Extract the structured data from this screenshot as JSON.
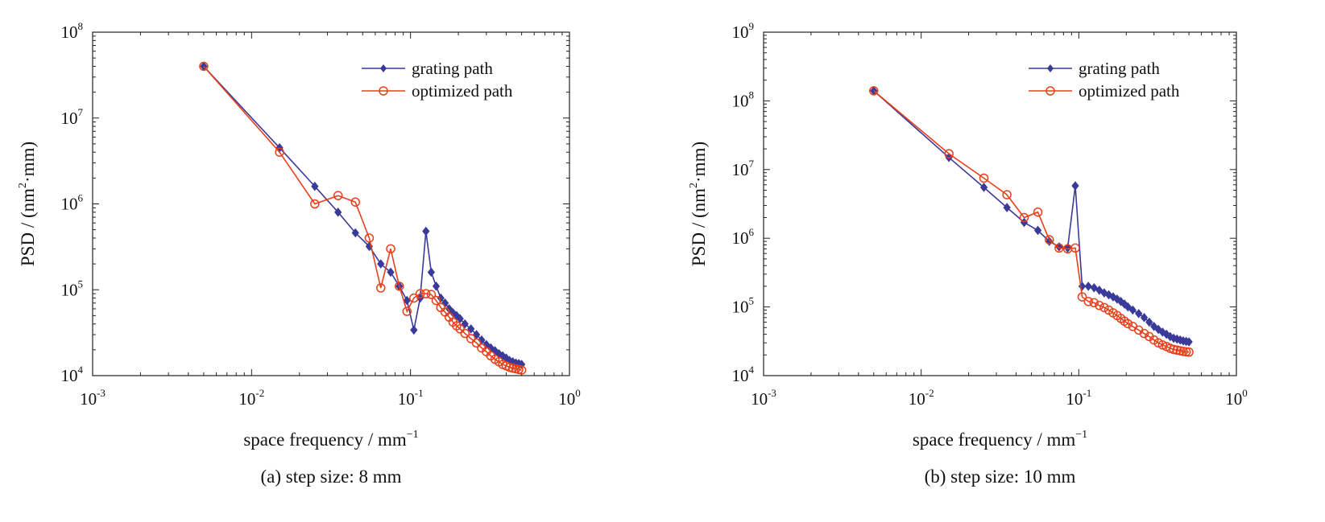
{
  "chart_data": [
    {
      "type": "line",
      "caption": "(a) step size: 8 mm",
      "xlabel": "space frequency / mm",
      "xlabel_sup": "−1",
      "ylabel": "PSD / (nm",
      "ylabel_sup": "2",
      "ylabel_tail": "·mm)",
      "x_scale": "log",
      "y_scale": "log",
      "xlim": [
        0.001,
        1
      ],
      "ylim": [
        10000,
        100000000
      ],
      "x_ticks": [
        {
          "base": "10",
          "exp": "-3"
        },
        {
          "base": "10",
          "exp": "-2"
        },
        {
          "base": "10",
          "exp": "-1"
        },
        {
          "base": "10",
          "exp": "0"
        }
      ],
      "y_ticks": [
        {
          "base": "10",
          "exp": "4"
        },
        {
          "base": "10",
          "exp": "5"
        },
        {
          "base": "10",
          "exp": "6"
        },
        {
          "base": "10",
          "exp": "7"
        },
        {
          "base": "10",
          "exp": "8"
        }
      ],
      "grid": false,
      "legend_position": "top-right",
      "series": [
        {
          "name": "grating path",
          "color": "#3a3a9a",
          "marker": "diamond",
          "x": [
            0.005,
            0.015,
            0.025,
            0.035,
            0.045,
            0.055,
            0.065,
            0.075,
            0.085,
            0.095,
            0.105,
            0.115,
            0.125,
            0.135,
            0.145,
            0.155,
            0.165,
            0.175,
            0.185,
            0.195,
            0.205,
            0.22,
            0.24,
            0.26,
            0.28,
            0.3,
            0.32,
            0.34,
            0.36,
            0.38,
            0.4,
            0.42,
            0.44,
            0.46,
            0.48,
            0.5
          ],
          "y": [
            40000000,
            4500000,
            1600000,
            800000,
            460000,
            320000,
            200000,
            160000,
            110000,
            75000,
            34000,
            80000,
            480000,
            160000,
            110000,
            80000,
            70000,
            60000,
            54000,
            50000,
            46000,
            40000,
            35000,
            30000,
            26000,
            23000,
            21000,
            19500,
            18000,
            17000,
            16000,
            15000,
            14500,
            14000,
            13800,
            13500
          ]
        },
        {
          "name": "optimized path",
          "color": "#e8401c",
          "marker": "circle",
          "x": [
            0.005,
            0.015,
            0.025,
            0.035,
            0.045,
            0.055,
            0.065,
            0.075,
            0.085,
            0.095,
            0.105,
            0.115,
            0.125,
            0.135,
            0.145,
            0.155,
            0.165,
            0.175,
            0.185,
            0.195,
            0.205,
            0.22,
            0.24,
            0.26,
            0.28,
            0.3,
            0.32,
            0.34,
            0.36,
            0.38,
            0.4,
            0.42,
            0.44,
            0.46,
            0.48,
            0.5
          ],
          "y": [
            40000000,
            4000000,
            1000000,
            1250000,
            1050000,
            400000,
            105000,
            300000,
            110000,
            56000,
            80000,
            90000,
            90000,
            88000,
            75000,
            62000,
            55000,
            48000,
            42000,
            38000,
            35000,
            31000,
            27000,
            24000,
            21000,
            19000,
            17000,
            15500,
            14500,
            13500,
            13000,
            12500,
            12200,
            12000,
            11800,
            11600
          ]
        }
      ]
    },
    {
      "type": "line",
      "caption": "(b) step size: 10 mm",
      "xlabel": "space frequency / mm",
      "xlabel_sup": "−1",
      "ylabel": "PSD / (nm",
      "ylabel_sup": "2",
      "ylabel_tail": "·mm)",
      "x_scale": "log",
      "y_scale": "log",
      "xlim": [
        0.001,
        1
      ],
      "ylim": [
        10000,
        1000000000
      ],
      "x_ticks": [
        {
          "base": "10",
          "exp": "-3"
        },
        {
          "base": "10",
          "exp": "-2"
        },
        {
          "base": "10",
          "exp": "-1"
        },
        {
          "base": "10",
          "exp": "0"
        }
      ],
      "y_ticks": [
        {
          "base": "10",
          "exp": "4"
        },
        {
          "base": "10",
          "exp": "5"
        },
        {
          "base": "10",
          "exp": "6"
        },
        {
          "base": "10",
          "exp": "7"
        },
        {
          "base": "10",
          "exp": "8"
        },
        {
          "base": "10",
          "exp": "9"
        }
      ],
      "grid": false,
      "legend_position": "top-right",
      "series": [
        {
          "name": "grating path",
          "color": "#3a3a9a",
          "marker": "diamond",
          "x": [
            0.005,
            0.015,
            0.025,
            0.035,
            0.045,
            0.055,
            0.065,
            0.075,
            0.085,
            0.095,
            0.105,
            0.115,
            0.125,
            0.135,
            0.145,
            0.155,
            0.165,
            0.175,
            0.185,
            0.195,
            0.205,
            0.22,
            0.24,
            0.26,
            0.28,
            0.3,
            0.32,
            0.34,
            0.36,
            0.38,
            0.4,
            0.42,
            0.44,
            0.46,
            0.48,
            0.5
          ],
          "y": [
            140000000,
            15000000,
            5500000,
            2800000,
            1700000,
            1300000,
            900000,
            750000,
            720000,
            5800000,
            200000,
            200000,
            190000,
            175000,
            160000,
            150000,
            140000,
            130000,
            120000,
            110000,
            100000,
            90000,
            80000,
            70000,
            60000,
            52000,
            47000,
            43000,
            40000,
            37000,
            35000,
            34000,
            33000,
            32000,
            31500,
            31000
          ]
        },
        {
          "name": "optimized path",
          "color": "#e8401c",
          "marker": "circle",
          "x": [
            0.005,
            0.015,
            0.025,
            0.035,
            0.045,
            0.055,
            0.065,
            0.075,
            0.085,
            0.095,
            0.105,
            0.115,
            0.125,
            0.135,
            0.145,
            0.155,
            0.165,
            0.175,
            0.185,
            0.195,
            0.205,
            0.22,
            0.24,
            0.26,
            0.28,
            0.3,
            0.32,
            0.34,
            0.36,
            0.38,
            0.4,
            0.42,
            0.44,
            0.46,
            0.48,
            0.5
          ],
          "y": [
            140000000,
            17000000,
            7500000,
            4300000,
            2000000,
            2400000,
            950000,
            720000,
            700000,
            720000,
            140000,
            120000,
            115000,
            105000,
            98000,
            90000,
            82000,
            75000,
            68000,
            62000,
            57000,
            52000,
            46000,
            41000,
            37000,
            33000,
            30000,
            28000,
            26500,
            25000,
            24000,
            23500,
            23000,
            22500,
            22200,
            22000
          ]
        }
      ]
    }
  ]
}
